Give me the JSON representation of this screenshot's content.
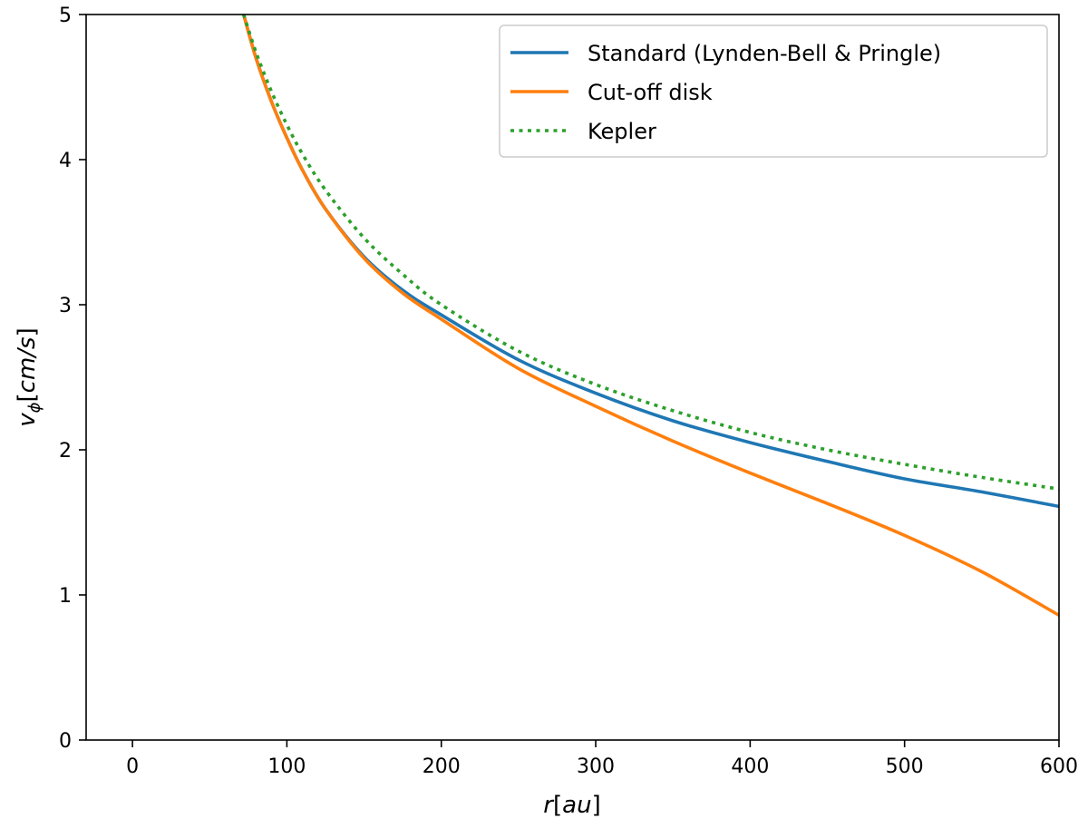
{
  "chart_data": {
    "type": "line",
    "title": "",
    "xlabel": {
      "main": "r",
      "unit": "au"
    },
    "ylabel": {
      "main": "v",
      "subscript": "ϕ",
      "unit": "cm/s"
    },
    "xlim": [
      -30,
      600
    ],
    "ylim": [
      0,
      5
    ],
    "xticks": [
      0,
      100,
      200,
      300,
      400,
      500,
      600
    ],
    "yticks": [
      0,
      1,
      2,
      3,
      4,
      5
    ],
    "grid": false,
    "legend_position": "top-right",
    "series": [
      {
        "name": "Standard (Lynden-Bell & Pringle)",
        "color": "#1f77b4",
        "style": "solid",
        "x": [
          72,
          80,
          90,
          100,
          110,
          125,
          150,
          175,
          200,
          250,
          300,
          350,
          400,
          450,
          500,
          550,
          600
        ],
        "y": [
          5.0,
          4.7,
          4.4,
          4.15,
          3.93,
          3.66,
          3.33,
          3.1,
          2.93,
          2.62,
          2.39,
          2.2,
          2.05,
          1.92,
          1.8,
          1.71,
          1.61
        ]
      },
      {
        "name": "Cut-off disk",
        "color": "#ff7f0e",
        "style": "solid",
        "x": [
          72,
          80,
          90,
          100,
          110,
          125,
          150,
          175,
          200,
          250,
          300,
          350,
          400,
          450,
          500,
          550,
          600
        ],
        "y": [
          5.0,
          4.7,
          4.4,
          4.15,
          3.93,
          3.66,
          3.32,
          3.08,
          2.9,
          2.56,
          2.3,
          2.06,
          1.84,
          1.63,
          1.41,
          1.16,
          0.86
        ]
      },
      {
        "name": "Kepler",
        "color": "#2ca02c",
        "style": "dotted",
        "x": [
          72,
          80,
          90,
          100,
          110,
          125,
          150,
          175,
          200,
          250,
          300,
          350,
          400,
          450,
          500,
          550,
          600
        ],
        "y": [
          5.0,
          4.74,
          4.47,
          4.24,
          4.04,
          3.79,
          3.46,
          3.21,
          3.0,
          2.68,
          2.45,
          2.27,
          2.12,
          2.0,
          1.9,
          1.81,
          1.73
        ]
      }
    ]
  }
}
